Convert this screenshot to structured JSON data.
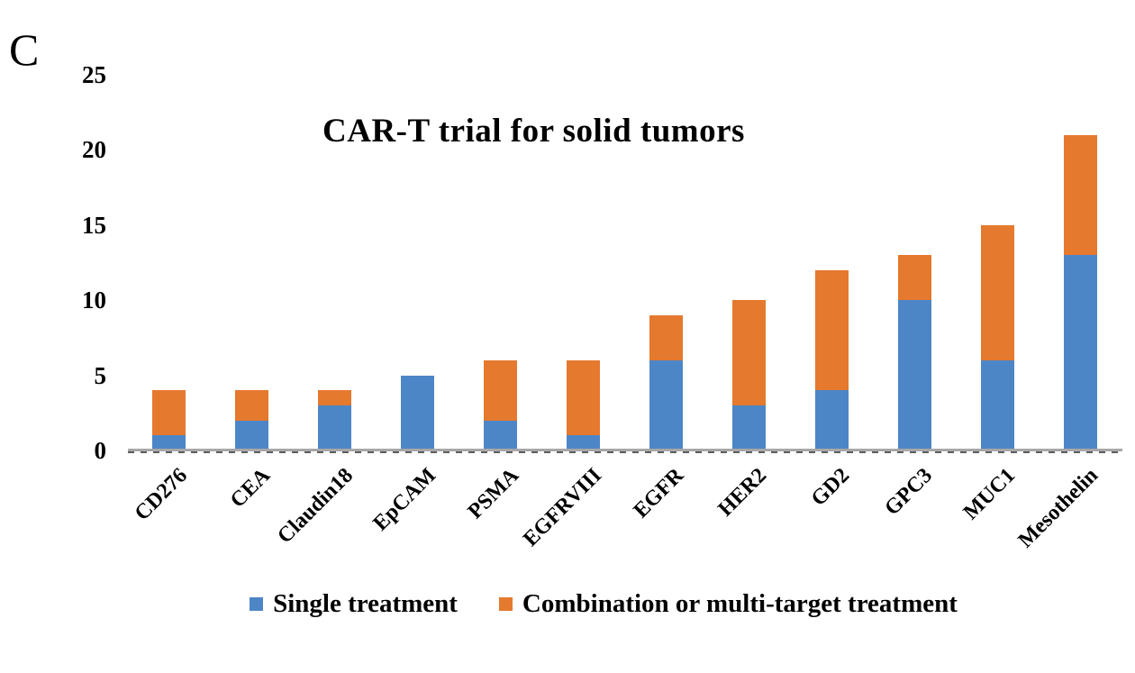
{
  "panel_label": "C",
  "chart_data": {
    "type": "bar",
    "stacked": true,
    "title": "CAR-T trial for solid tumors",
    "categories": [
      "CD276",
      "CEA",
      "Claudin18",
      "EpCAM",
      "PSMA",
      "EGFRVIII",
      "EGFR",
      "HER2",
      "GD2",
      "GPC3",
      "MUC1",
      "Mesothelin"
    ],
    "series": [
      {
        "name": "Single treatment",
        "color": "#4d86c6",
        "values": [
          1,
          2,
          3,
          5,
          2,
          1,
          6,
          3,
          4,
          10,
          6,
          13
        ]
      },
      {
        "name": "Combination or multi-target treatment",
        "color": "#e5792e",
        "values": [
          3,
          2,
          1,
          0,
          4,
          5,
          3,
          7,
          8,
          3,
          9,
          8
        ]
      }
    ],
    "totals": [
      4,
      4,
      4,
      5,
      6,
      6,
      9,
      10,
      12,
      13,
      15,
      21
    ],
    "xlabel": "",
    "ylabel": "",
    "ylim": [
      0,
      25
    ],
    "y_ticks": [
      0,
      5,
      10,
      15,
      20,
      25
    ],
    "grid": false,
    "legend_position": "bottom",
    "axis_line_color": "#a8a8a8"
  }
}
